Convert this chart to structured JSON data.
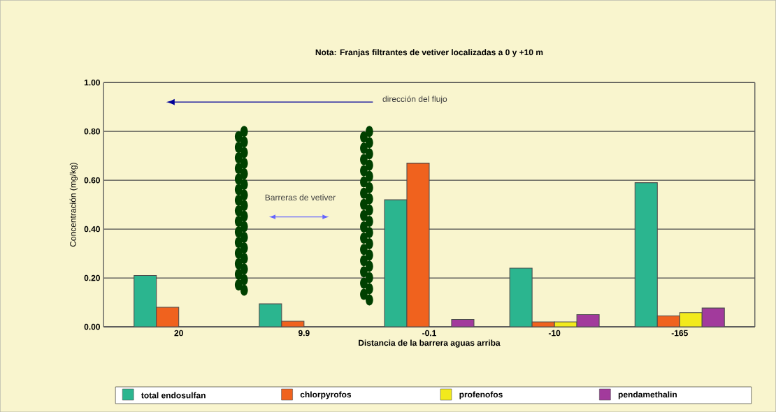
{
  "chart_data": {
    "type": "bar",
    "title": "Nota: Franjas filtrantes de vetiver localizadas a 0 y +10 m",
    "xlabel": "Distancia de la barrera aguas arriba",
    "ylabel": "Concentración (mg/kg)",
    "categories": [
      "20",
      "9.9",
      "-0.1",
      "-10",
      "-165"
    ],
    "series": [
      {
        "name": "total endosulfan",
        "color": "#2bb58f",
        "values": [
          0.21,
          0.094,
          0.52,
          0.24,
          0.59
        ]
      },
      {
        "name": "chlorpyrofos",
        "color": "#f0621e",
        "values": [
          0.08,
          0.023,
          0.67,
          0.02,
          0.045
        ]
      },
      {
        "name": "profenofos",
        "color": "#f2ea1c",
        "values": [
          null,
          null,
          null,
          0.02,
          0.058
        ]
      },
      {
        "name": "pendamethalin",
        "color": "#a23a9c",
        "values": [
          null,
          null,
          0.03,
          0.05,
          0.077
        ]
      }
    ],
    "ylim": [
      0,
      1.0
    ],
    "yticks": [
      {
        "value": 0,
        "label": "0.00"
      },
      {
        "value": 0.2,
        "label": "0.20"
      },
      {
        "value": 0.4,
        "label": "0.40"
      },
      {
        "value": 0.6,
        "label": "0.60"
      },
      {
        "value": 0.8,
        "label": "0.80"
      },
      {
        "value": 1.0,
        "label": "1.00"
      }
    ],
    "grid": "y",
    "legend": "bottom",
    "annotations": [
      "dirección del flujo",
      "Barreras de vetiver"
    ]
  }
}
